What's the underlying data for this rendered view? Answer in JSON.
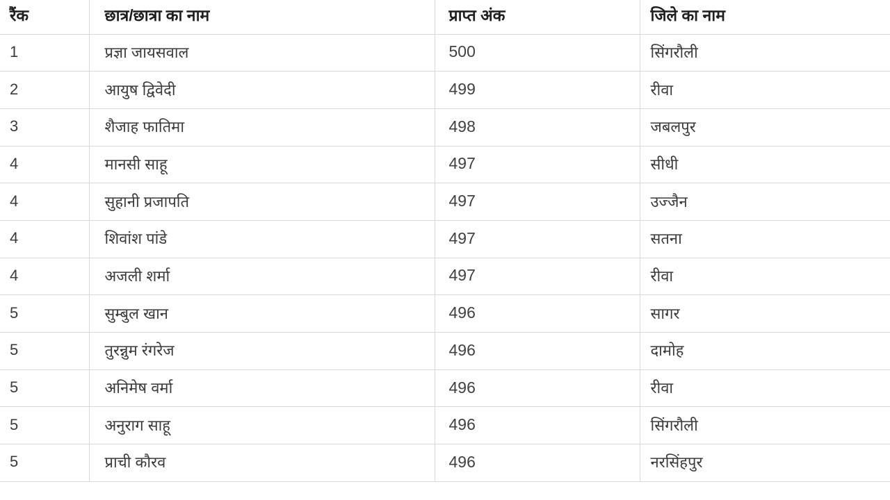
{
  "table": {
    "columns": [
      {
        "key": "rank",
        "label": "रैंक"
      },
      {
        "key": "name",
        "label": "छात्र/छात्रा का नाम"
      },
      {
        "key": "marks",
        "label": "प्राप्त अंक"
      },
      {
        "key": "district",
        "label": "जिले का नाम"
      }
    ],
    "rows": [
      {
        "rank": "1",
        "name": "प्रज्ञा जायसवाल",
        "marks": "500",
        "district": "सिंगरौली"
      },
      {
        "rank": "2",
        "name": "आयुष द्विवेदी",
        "marks": "499",
        "district": "रीवा"
      },
      {
        "rank": "3",
        "name": "शैजाह फातिमा",
        "marks": "498",
        "district": "जबलपुर"
      },
      {
        "rank": "4",
        "name": "मानसी साहू",
        "marks": "497",
        "district": "सीधी"
      },
      {
        "rank": "4",
        "name": "सुहानी प्रजापति",
        "marks": "497",
        "district": "उज्जैन"
      },
      {
        "rank": "4",
        "name": "शिवांश पांडे",
        "marks": "497",
        "district": "सतना"
      },
      {
        "rank": "4",
        "name": "अजली शर्मा",
        "marks": "497",
        "district": "रीवा"
      },
      {
        "rank": "5",
        "name": "सुम्बुल खान",
        "marks": "496",
        "district": "सागर"
      },
      {
        "rank": "5",
        "name": "तुरन्नुम रंगरेज",
        "marks": "496",
        "district": "दामोह"
      },
      {
        "rank": "5",
        "name": "अनिमेष वर्मा",
        "marks": "496",
        "district": "रीवा"
      },
      {
        "rank": "5",
        "name": "अनुराग साहू",
        "marks": "496",
        "district": "सिंगरौली"
      },
      {
        "rank": "5",
        "name": "प्राची कौरव",
        "marks": "496",
        "district": "नरसिंहपुर"
      }
    ],
    "colors": {
      "border": "#d9d9d9",
      "body_text": "#3b3b3b",
      "header_text": "#1f1f1f",
      "background": "#ffffff"
    }
  }
}
